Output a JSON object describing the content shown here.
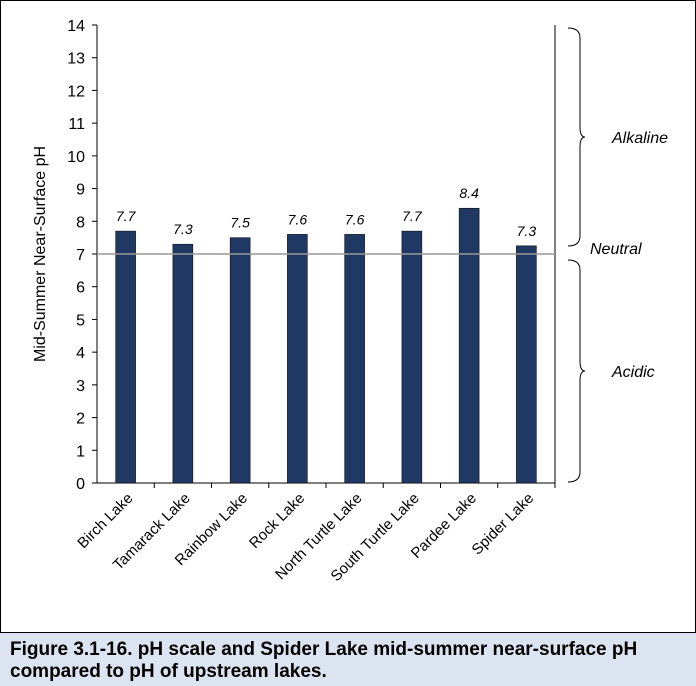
{
  "chart_data": {
    "type": "bar",
    "categories": [
      "Birch Lake",
      "Tamarack Lake",
      "Rainbow Lake",
      "Rock Lake",
      "North Turtle Lake",
      "South Turtle Lake",
      "Pardee Lake",
      "Spider Lake"
    ],
    "values": [
      7.7,
      7.3,
      7.5,
      7.6,
      7.6,
      7.7,
      8.4,
      7.25
    ],
    "data_labels": [
      "7.7",
      "7.3",
      "7.5",
      "7.6",
      "7.6",
      "7.7",
      "8.4",
      "7.3"
    ],
    "ylabel": "Mid-Summer Near-Surface pH",
    "xlabel": "",
    "ylim": [
      0,
      14
    ],
    "yticks": [
      "0",
      "1",
      "2",
      "3",
      "4",
      "5",
      "6",
      "7",
      "8",
      "9",
      "10",
      "11",
      "12",
      "13",
      "14"
    ],
    "reference_line": 7,
    "grid": false,
    "bar_color": "#1f3864",
    "regions": [
      {
        "label": "Alkaline",
        "from": 7,
        "to": 14
      },
      {
        "label": "Neutral",
        "at": 7
      },
      {
        "label": "Acidic",
        "from": 0,
        "to": 7
      }
    ]
  },
  "caption": "Figure 3.1-16.  pH scale and Spider Lake mid-summer near-surface pH compared to pH of upstream lakes."
}
